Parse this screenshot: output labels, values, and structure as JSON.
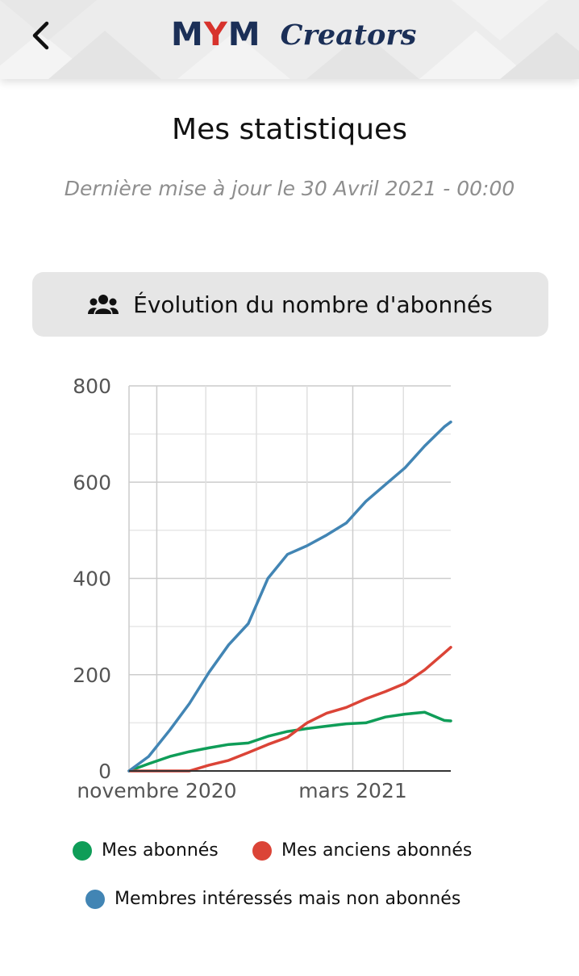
{
  "header": {
    "logo_text_left": "MYM",
    "logo_text_right": "Creators",
    "back_icon": "chevron-left-icon"
  },
  "page": {
    "title": "Mes statistiques",
    "last_update": "Dernière mise à jour le 30 Avril 2021 - 00:00"
  },
  "section": {
    "icon": "users-icon",
    "label": "Évolution du nombre d'abonnés"
  },
  "colors": {
    "green": "#0f9d58",
    "red": "#db4437",
    "blue": "#4285b4"
  },
  "chart_data": {
    "type": "line",
    "title": "",
    "xlabel": "",
    "ylabel": "",
    "ylim": [
      0,
      800
    ],
    "yticks": [
      0,
      200,
      400,
      600,
      800
    ],
    "xlim": [
      "2020-10-15",
      "2021-04-30"
    ],
    "xticks": [
      {
        "date": "2020-11-01",
        "label": "novembre 2020"
      },
      {
        "date": "2021-03-01",
        "label": "mars 2021"
      }
    ],
    "x": [
      "2020-10-15",
      "2020-10-27",
      "2020-11-09",
      "2020-11-21",
      "2020-12-03",
      "2020-12-15",
      "2020-12-27",
      "2021-01-08",
      "2021-01-20",
      "2021-02-01",
      "2021-02-13",
      "2021-02-25",
      "2021-03-09",
      "2021-03-21",
      "2021-04-02",
      "2021-04-14",
      "2021-04-26",
      "2021-04-30"
    ],
    "series": [
      {
        "name": "Mes abonnés",
        "color": "#0f9d58",
        "values": [
          0,
          15,
          30,
          40,
          48,
          55,
          58,
          72,
          82,
          88,
          93,
          98,
          100,
          112,
          118,
          122,
          105,
          104
        ]
      },
      {
        "name": "Mes anciens abonnés",
        "color": "#db4437",
        "values": [
          0,
          0,
          0,
          0,
          12,
          22,
          38,
          55,
          70,
          100,
          120,
          132,
          150,
          165,
          182,
          210,
          245,
          257
        ]
      },
      {
        "name": "Membres intéressés mais non abonnés",
        "color": "#4285b4",
        "values": [
          0,
          30,
          85,
          140,
          205,
          262,
          306,
          400,
          450,
          468,
          490,
          515,
          560,
          595,
          630,
          675,
          715,
          725
        ]
      }
    ],
    "grid": true,
    "legend_position": "bottom"
  }
}
